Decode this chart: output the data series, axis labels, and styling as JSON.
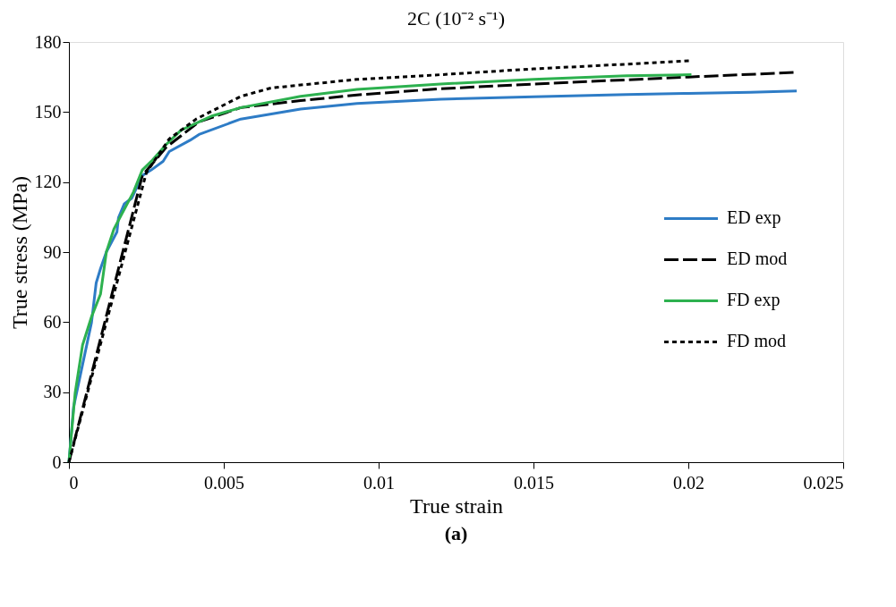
{
  "chart_data": {
    "type": "line",
    "title": "2C (10⁻² s⁻¹)",
    "xlabel": "True strain",
    "ylabel": "True stress (MPa)",
    "xlim": [
      0,
      0.025
    ],
    "xticks": [
      0,
      0.005,
      0.01,
      0.015,
      0.02,
      0.025
    ],
    "ylim": [
      0,
      180
    ],
    "yticks": [
      0,
      30,
      60,
      90,
      120,
      150,
      180
    ],
    "grid": false,
    "legend": "right",
    "marker": "none",
    "annotations": [
      "(a)"
    ],
    "series": [
      {
        "name": "ED exp",
        "color": "#2e7cc6",
        "line_style": "solid",
        "x": [
          0,
          0.00015,
          0.00073,
          0.00088,
          0.00102,
          0.00121,
          0.00155,
          0.0016,
          0.00179,
          0.00203,
          0.00237,
          0.00266,
          0.00304,
          0.00324,
          0.00391,
          0.0042,
          0.00555,
          0.00748,
          0.0093,
          0.012,
          0.015,
          0.018,
          0.02,
          0.022,
          0.0235
        ],
        "values": [
          0,
          23.6,
          59.9,
          76.8,
          82.9,
          90.1,
          98.6,
          104.7,
          110.7,
          113.1,
          122.8,
          125.2,
          128.9,
          133.1,
          137.9,
          140.4,
          147.0,
          151.3,
          153.7,
          155.5,
          156.5,
          157.5,
          158,
          158.5,
          159
        ]
      },
      {
        "name": "ED mod",
        "color": "#000000",
        "line_style": "dashed",
        "x": [
          0,
          0.00237,
          0.00314,
          0.0042,
          0.00555,
          0.00748,
          0.0093,
          0.012,
          0.015,
          0.018,
          0.02,
          0.0235
        ],
        "values": [
          0,
          122.8,
          134.9,
          145.8,
          151.9,
          154.9,
          157.3,
          160,
          162,
          163.8,
          165,
          167
        ]
      },
      {
        "name": "FD exp",
        "color": "#2db14f",
        "line_style": "solid",
        "x": [
          0,
          0.0002,
          0.00044,
          0.00073,
          0.00102,
          0.00121,
          0.00145,
          0.00169,
          0.00208,
          0.00237,
          0.00266,
          0.00314,
          0.00362,
          0.00459,
          0.00555,
          0.00748,
          0.0093,
          0.012,
          0.015,
          0.018,
          0.0201
        ],
        "values": [
          0,
          29.6,
          50.2,
          62.3,
          72,
          90.1,
          99.8,
          105.9,
          115.6,
          125.2,
          128.9,
          136.1,
          142.2,
          148.2,
          151.9,
          156.7,
          159.7,
          162,
          164,
          165.5,
          166
        ]
      },
      {
        "name": "FD mod",
        "color": "#000000",
        "line_style": "dotted",
        "x": [
          0,
          0.0025,
          0.00324,
          0.00411,
          0.00555,
          0.00652,
          0.0093,
          0.012,
          0.015,
          0.018,
          0.0201
        ],
        "values": [
          0,
          124,
          138.5,
          147,
          156.7,
          160.3,
          164,
          166,
          168.5,
          170.5,
          172
        ]
      }
    ]
  }
}
